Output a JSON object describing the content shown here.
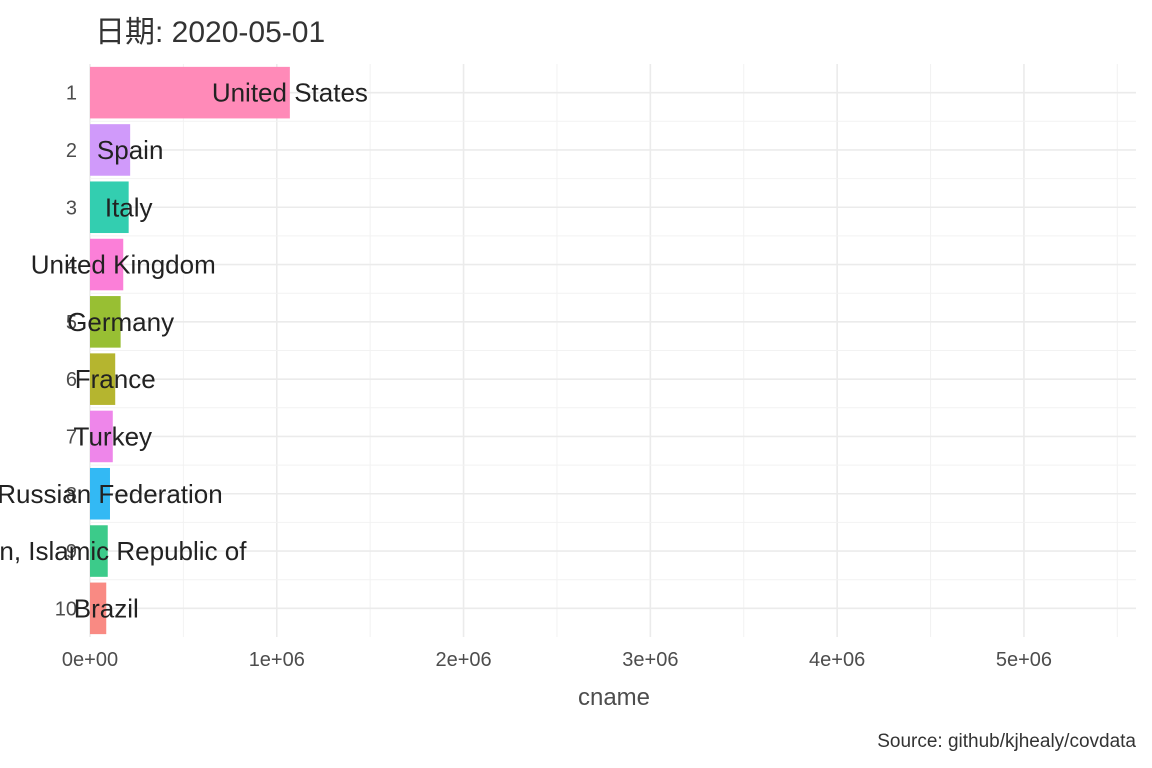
{
  "chart_data": {
    "type": "bar",
    "orientation": "horizontal",
    "title": "日期: 2020-05-01",
    "xlabel": "cname",
    "ylabel": "",
    "caption": "Source: github/kjhealy/covdata",
    "xlim": [
      0,
      5600000
    ],
    "x_ticks": [
      0,
      1000000,
      2000000,
      3000000,
      4000000,
      5000000
    ],
    "x_tick_labels": [
      "0e+00",
      "1e+06",
      "2e+06",
      "3e+06",
      "4e+06",
      "5e+06"
    ],
    "grid": true,
    "legend": "none",
    "categories": [
      "United States",
      "Spain",
      "Italy",
      "United Kingdom",
      "Germany",
      "France",
      "Turkey",
      "Russian Federation",
      "Iran, Islamic Republic of",
      "Brazil"
    ],
    "ranks": [
      "1",
      "2",
      "3",
      "4",
      "5",
      "6",
      "7",
      "8",
      "9",
      "10"
    ],
    "values": [
      1070000,
      215000,
      207000,
      178000,
      164000,
      135000,
      122000,
      107000,
      95000,
      87000
    ],
    "colors": [
      "#ff8ab8",
      "#d09afa",
      "#33ceb0",
      "#fb7fd8",
      "#98bf33",
      "#b5b52f",
      "#ee86ea",
      "#33b9f4",
      "#3ccb8a",
      "#f98a83"
    ]
  }
}
